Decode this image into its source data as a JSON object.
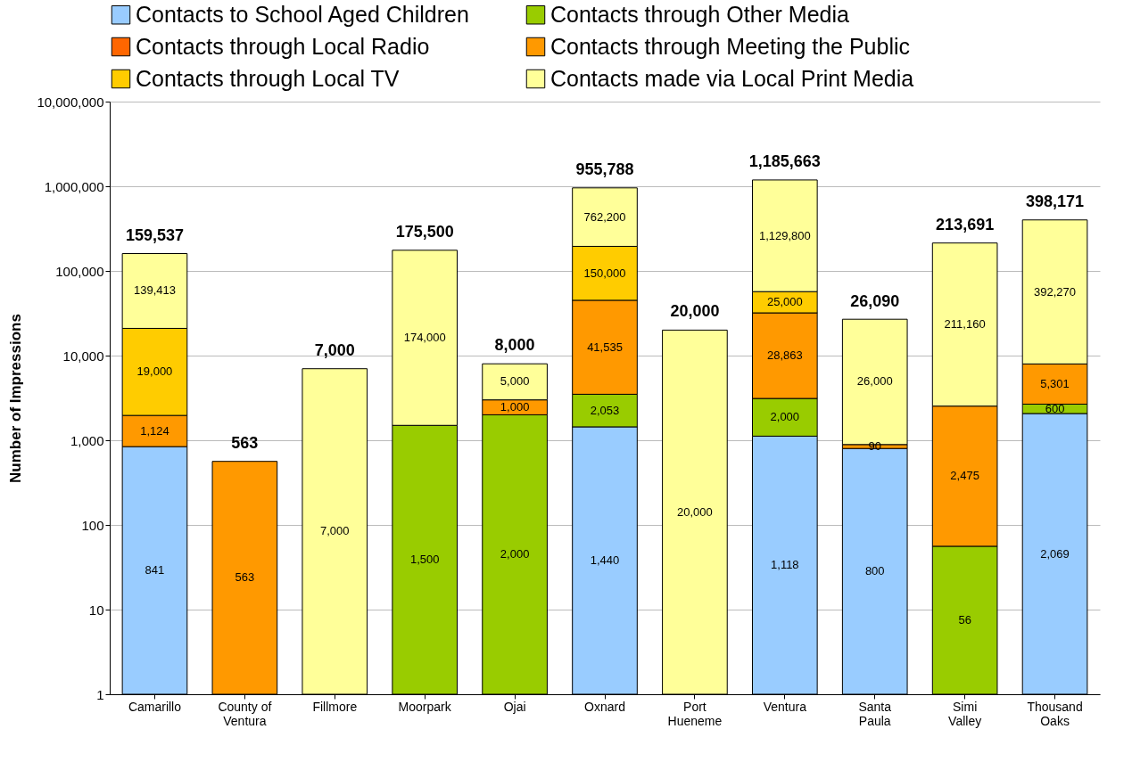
{
  "chart_data": {
    "type": "bar",
    "ylabel": "Number of Impressions",
    "stacked": true,
    "log": "y",
    "grid": "y",
    "legend": "top",
    "categories": [
      "Camarillo",
      "County of Ventura",
      "Fillmore",
      "Moorpark",
      "Ojai",
      "Oxnard",
      "Port Hueneme",
      "Ventura",
      "Santa Paula",
      "Simi Valley",
      "Thousand Oaks"
    ],
    "ylim": [
      1,
      10000000
    ],
    "yticks": [
      1,
      10,
      100,
      {
        "value": 1000,
        "label": "1,000"
      },
      {
        "value": 10000,
        "label": "10,000"
      },
      {
        "value": 100000,
        "label": "100,000"
      },
      {
        "value": 1000000,
        "label": "1,000,000"
      },
      {
        "value": 10000000,
        "label": "10,000,000"
      }
    ],
    "series": [
      {
        "name": "Contacts to School Aged Children",
        "color": "#99ccff",
        "values": [
          841,
          null,
          null,
          null,
          null,
          1440,
          null,
          1118,
          800,
          null,
          2069
        ],
        "value_labels": [
          "841",
          null,
          null,
          null,
          null,
          "1,440",
          null,
          "1,118",
          "800",
          null,
          "2,069"
        ]
      },
      {
        "name": "Contacts through Other Media",
        "color": "#99cc00",
        "values": [
          null,
          null,
          null,
          1500,
          2000,
          2053,
          null,
          2000,
          null,
          56,
          600
        ],
        "value_labels": [
          null,
          null,
          null,
          "1,500",
          "2,000",
          "2,053",
          null,
          "2,000",
          null,
          "56",
          "600"
        ]
      },
      {
        "name": "Contacts through Local Radio",
        "color": "#ff6600",
        "values": [
          null,
          null,
          null,
          null,
          null,
          null,
          null,
          null,
          null,
          null,
          null
        ],
        "value_labels": [
          null,
          null,
          null,
          null,
          null,
          null,
          null,
          null,
          null,
          null,
          null
        ]
      },
      {
        "name": "Contacts through Meeting the Public",
        "color": "#ff9900",
        "values": [
          1124,
          563,
          null,
          null,
          1000,
          41535,
          null,
          28863,
          90,
          2475,
          5301
        ],
        "value_labels": [
          "1,124",
          "563",
          null,
          null,
          "1,000",
          "41,535",
          null,
          "28,863",
          "90",
          "2,475",
          "5,301"
        ]
      },
      {
        "name": "Contacts through Local TV",
        "color": "#ffcc00",
        "values": [
          19000,
          null,
          null,
          null,
          null,
          150000,
          null,
          25000,
          null,
          null,
          null
        ],
        "value_labels": [
          "19,000",
          null,
          null,
          null,
          null,
          "150,000",
          null,
          "25,000",
          null,
          null,
          null
        ]
      },
      {
        "name": "Contacts made via Local Print Media",
        "color": "#ffff99",
        "values": [
          139413,
          null,
          7000,
          174000,
          5000,
          762200,
          20000,
          1129800,
          26000,
          211160,
          392270
        ],
        "value_labels": [
          "139,413",
          null,
          "7,000",
          "174,000",
          "5,000",
          "762,200",
          "20,000",
          "1,129,800",
          "26,000",
          "211,160",
          "392,270"
        ]
      }
    ],
    "totals": [
      null,
      "563",
      "7,000",
      "175,500",
      "8,000",
      null,
      "20,000",
      null,
      null,
      "213,691",
      null
    ],
    "annotations": [
      {
        "text": "159,537",
        "x": "Camarillo",
        "y": 159537
      },
      {
        "text": "955,788",
        "x": "Oxnard",
        "y": 955788
      },
      {
        "text": "1,185,663",
        "x": "Ventura",
        "y": 1185663
      },
      {
        "text": "26,090",
        "x": "Santa Paula",
        "y": 26090
      },
      {
        "text": "398,171",
        "x": "Thousand Oaks",
        "y": 398171
      }
    ]
  }
}
